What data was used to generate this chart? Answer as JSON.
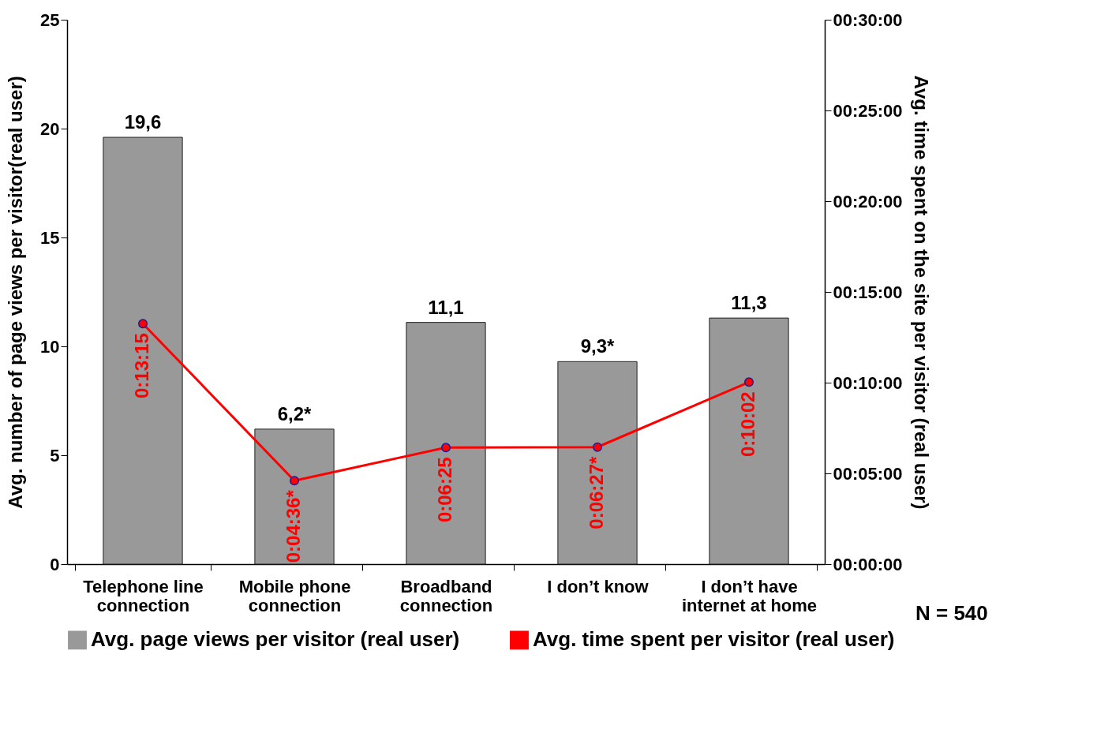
{
  "chart_data": {
    "type": "bar",
    "categories": [
      "Telephone line\nconnection",
      "Mobile phone\nconnection",
      "Broadband\nconnection",
      "I don’t know",
      "I don’t have\ninternet at home"
    ],
    "series": [
      {
        "name": "Avg. page views per visitor (real user)",
        "type": "bar",
        "color": "#999999",
        "values": [
          19.6,
          6.2,
          11.1,
          9.3,
          11.3
        ],
        "value_labels": [
          "19,6",
          "6,2*",
          "11,1",
          "9,3*",
          "11,3"
        ]
      },
      {
        "name": "Avg. time spent per visitor (real user)",
        "type": "line",
        "axis": "y2",
        "color": "#ff0000",
        "values": [
          13.25,
          4.6,
          6.42,
          6.45,
          10.03
        ],
        "value_labels": [
          "0:13:15",
          "0:04:36*",
          "0:06:25",
          "0:06:27*",
          "0:10:02"
        ]
      }
    ],
    "ylabel": "Avg. number of page views per visitor(real user)",
    "y2label": "Avg. time spent on the site per visitor (real user)",
    "ylim": [
      0,
      25
    ],
    "yticks": [
      0,
      5,
      10,
      15,
      20,
      25
    ],
    "y2lim": [
      0,
      30
    ],
    "y2ticks": [
      {
        "value": 0,
        "label": "00:00:00"
      },
      {
        "value": 5,
        "label": "00:05:00"
      },
      {
        "value": 10,
        "label": "00:10:00"
      },
      {
        "value": 15,
        "label": "00:15:00"
      },
      {
        "value": 20,
        "label": "00:20:00"
      },
      {
        "value": 25,
        "label": "00:25:00"
      },
      {
        "value": 30,
        "label": "00:30:00"
      }
    ],
    "annotations": [
      "N = 540"
    ],
    "legend": "bottom",
    "grid": false,
    "marker": "circle",
    "line_style": "solid"
  }
}
